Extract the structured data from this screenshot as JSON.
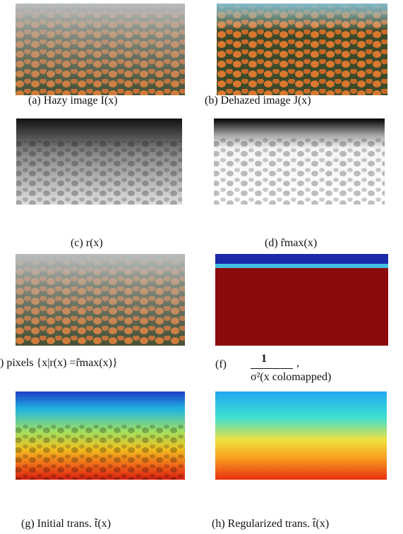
{
  "panels": [
    {
      "caption": "(a) Hazy image I(x)"
    },
    {
      "caption": "(b) Dehazed image J(x)"
    },
    {
      "caption": "(c) r(x)"
    },
    {
      "caption": "(d) r̂max(x)"
    },
    {
      "caption": ") pixels {x|r(x) =r̂max(x)}"
    },
    {
      "label": "(f)",
      "numerator": "1",
      "denominator": "σ²(x colomapped)",
      "trail": ","
    },
    {
      "caption": "(g) Initial trans. t̃(x)"
    },
    {
      "caption": "(h) Regularized trans. t̂(x)"
    }
  ]
}
